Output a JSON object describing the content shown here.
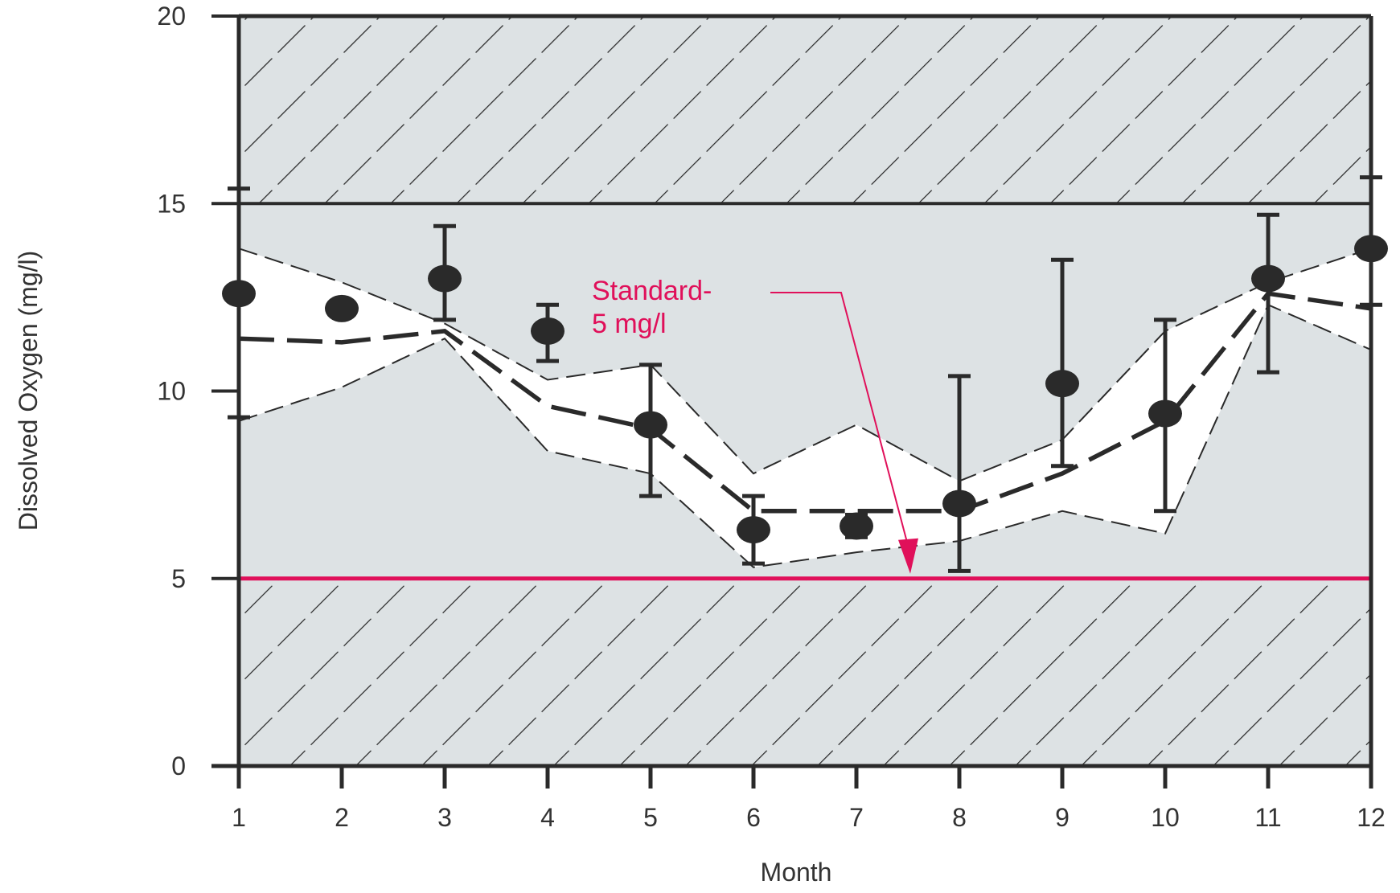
{
  "chart_data": {
    "type": "scatter",
    "title": "",
    "xlabel": "Month",
    "ylabel": "Dissolved Oxygen (mg/l)",
    "xlim": [
      1,
      12
    ],
    "ylim": [
      0,
      20
    ],
    "x_ticks": [
      "1",
      "2",
      "3",
      "4",
      "5",
      "6",
      "7",
      "8",
      "9",
      "10",
      "11",
      "12"
    ],
    "y_ticks": [
      "0",
      "5",
      "10",
      "15",
      "20"
    ],
    "grid": false,
    "colors": {
      "standard": "#e0105a",
      "shaded": "#dde2e4",
      "band": "#ffffff",
      "marks": "#2a2a2a"
    },
    "observed": [
      {
        "x": 1,
        "y": 12.6,
        "low": 9.3,
        "high": 15.4
      },
      {
        "x": 2,
        "y": 12.2
      },
      {
        "x": 3,
        "y": 13.0,
        "low": 11.9,
        "high": 14.4
      },
      {
        "x": 4,
        "y": 11.6,
        "low": 10.8,
        "high": 12.3
      },
      {
        "x": 5,
        "y": 9.1,
        "low": 7.2,
        "high": 10.7
      },
      {
        "x": 6,
        "y": 6.3,
        "low": 5.4,
        "high": 7.2
      },
      {
        "x": 7,
        "y": 6.4,
        "low": 6.1,
        "high": 6.7
      },
      {
        "x": 8,
        "y": 7.0,
        "low": 5.2,
        "high": 10.4
      },
      {
        "x": 9,
        "y": 10.2,
        "low": 8.0,
        "high": 13.5
      },
      {
        "x": 10,
        "y": 9.4,
        "low": 6.8,
        "high": 11.9
      },
      {
        "x": 11,
        "y": 13.0,
        "low": 10.5,
        "high": 14.7
      },
      {
        "x": 12,
        "y": 13.8,
        "low": 12.3,
        "high": 15.7
      }
    ],
    "band_upper": [
      13.8,
      12.9,
      11.8,
      10.3,
      10.7,
      7.8,
      9.1,
      7.6,
      8.7,
      11.6,
      12.9,
      13.8
    ],
    "band_lower": [
      9.2,
      10.1,
      11.4,
      8.4,
      7.8,
      5.3,
      5.7,
      6.0,
      6.8,
      6.2,
      12.3,
      11.1
    ],
    "median": [
      11.4,
      11.3,
      11.6,
      9.6,
      9.0,
      6.8,
      6.8,
      6.8,
      7.8,
      9.2,
      12.6,
      12.2
    ],
    "standard_value": 5,
    "upper_limit": 15,
    "annotation": {
      "line1": "Standard-",
      "line2": "5 mg/l"
    }
  }
}
